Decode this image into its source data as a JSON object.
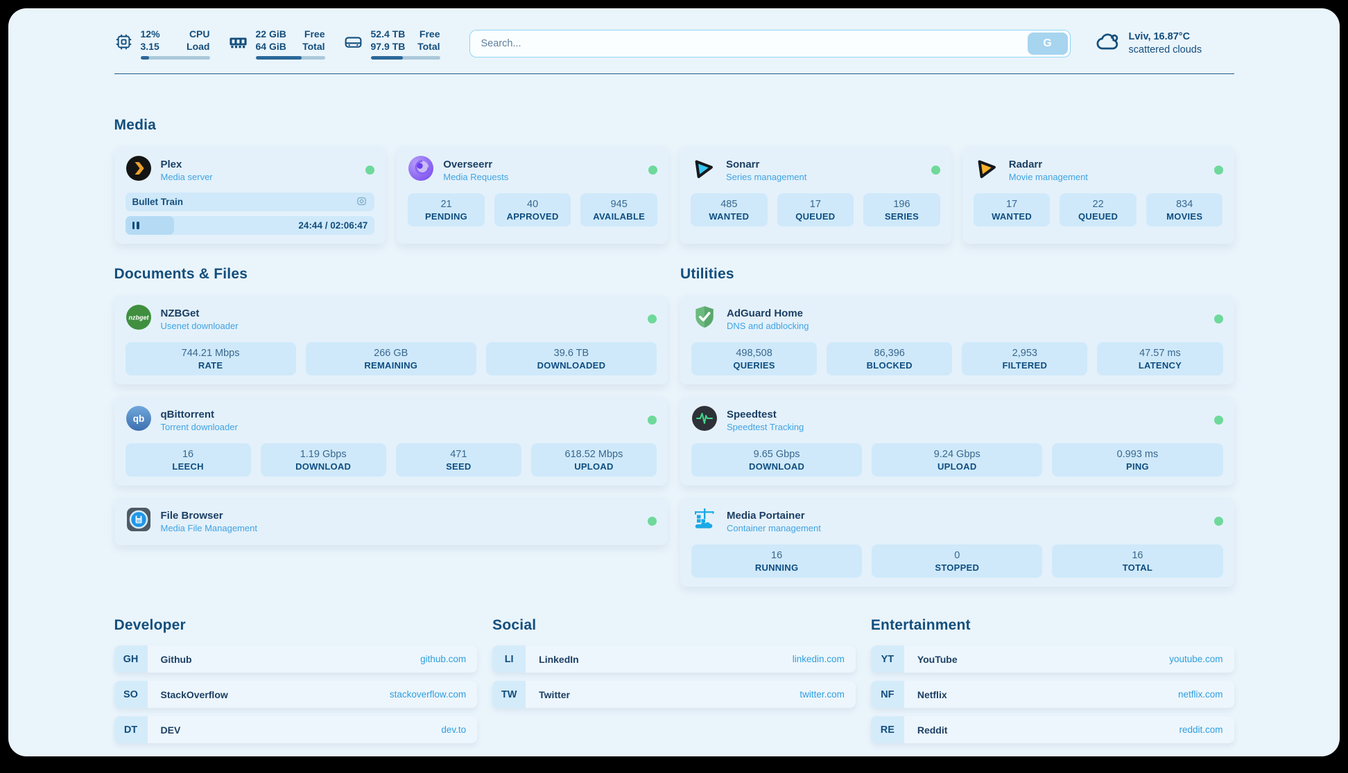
{
  "header": {
    "system_stats": [
      {
        "name": "cpu",
        "lines": [
          {
            "left": "12%",
            "right": "CPU"
          },
          {
            "left": "3.15",
            "right": "Load"
          }
        ],
        "progress_pct": 12
      },
      {
        "name": "ram",
        "lines": [
          {
            "left": "22 GiB",
            "right": "Free"
          },
          {
            "left": "64 GiB",
            "right": "Total"
          }
        ],
        "progress_pct": 66
      },
      {
        "name": "disk",
        "lines": [
          {
            "left": "52.4 TB",
            "right": "Free"
          },
          {
            "left": "97.9 TB",
            "right": "Total"
          }
        ],
        "progress_pct": 46
      }
    ],
    "search": {
      "placeholder": "Search...",
      "button_label": "G"
    },
    "weather": {
      "location_temp": "Lviv, 16.87°C",
      "condition": "scattered clouds"
    }
  },
  "sections": {
    "media": "Media",
    "documents": "Documents & Files",
    "utilities": "Utilities",
    "developer": "Developer",
    "social": "Social",
    "entertainment": "Entertainment"
  },
  "apps": {
    "plex": {
      "name": "Plex",
      "subtitle": "Media server",
      "now_playing": "Bullet Train",
      "time_display": "24:44 / 02:06:47",
      "progress_pct": 19.5
    },
    "overseerr": {
      "name": "Overseerr",
      "subtitle": "Media Requests",
      "stats": [
        {
          "value": "21",
          "label": "PENDING"
        },
        {
          "value": "40",
          "label": "APPROVED"
        },
        {
          "value": "945",
          "label": "AVAILABLE"
        }
      ]
    },
    "sonarr": {
      "name": "Sonarr",
      "subtitle": "Series management",
      "stats": [
        {
          "value": "485",
          "label": "WANTED"
        },
        {
          "value": "17",
          "label": "QUEUED"
        },
        {
          "value": "196",
          "label": "SERIES"
        }
      ]
    },
    "radarr": {
      "name": "Radarr",
      "subtitle": "Movie management",
      "stats": [
        {
          "value": "17",
          "label": "WANTED"
        },
        {
          "value": "22",
          "label": "QUEUED"
        },
        {
          "value": "834",
          "label": "MOVIES"
        }
      ]
    },
    "nzbget": {
      "name": "NZBGet",
      "subtitle": "Usenet downloader",
      "icon_text": "nzbget",
      "stats": [
        {
          "value": "744.21 Mbps",
          "label": "RATE"
        },
        {
          "value": "266 GB",
          "label": "REMAINING"
        },
        {
          "value": "39.6 TB",
          "label": "DOWNLOADED"
        }
      ]
    },
    "qbittorrent": {
      "name": "qBittorrent",
      "subtitle": "Torrent downloader",
      "icon_text": "qb",
      "stats": [
        {
          "value": "16",
          "label": "LEECH"
        },
        {
          "value": "1.19 Gbps",
          "label": "DOWNLOAD"
        },
        {
          "value": "471",
          "label": "SEED"
        },
        {
          "value": "618.52 Mbps",
          "label": "UPLOAD"
        }
      ]
    },
    "filebrowser": {
      "name": "File Browser",
      "subtitle": "Media File Management"
    },
    "adguard": {
      "name": "AdGuard Home",
      "subtitle": "DNS and adblocking",
      "stats": [
        {
          "value": "498,508",
          "label": "QUERIES"
        },
        {
          "value": "86,396",
          "label": "BLOCKED"
        },
        {
          "value": "2,953",
          "label": "FILTERED"
        },
        {
          "value": "47.57 ms",
          "label": "LATENCY"
        }
      ]
    },
    "speedtest": {
      "name": "Speedtest",
      "subtitle": "Speedtest Tracking",
      "stats": [
        {
          "value": "9.65 Gbps",
          "label": "DOWNLOAD"
        },
        {
          "value": "9.24 Gbps",
          "label": "UPLOAD"
        },
        {
          "value": "0.993 ms",
          "label": "PING"
        }
      ]
    },
    "portainer": {
      "name": "Media Portainer",
      "subtitle": "Container management",
      "stats": [
        {
          "value": "16",
          "label": "RUNNING"
        },
        {
          "value": "0",
          "label": "STOPPED"
        },
        {
          "value": "16",
          "label": "TOTAL"
        }
      ]
    }
  },
  "links": {
    "developer": [
      {
        "abbr": "GH",
        "name": "Github",
        "url": "github.com"
      },
      {
        "abbr": "SO",
        "name": "StackOverflow",
        "url": "stackoverflow.com"
      },
      {
        "abbr": "DT",
        "name": "DEV",
        "url": "dev.to"
      }
    ],
    "social": [
      {
        "abbr": "LI",
        "name": "LinkedIn",
        "url": "linkedin.com"
      },
      {
        "abbr": "TW",
        "name": "Twitter",
        "url": "twitter.com"
      }
    ],
    "entertainment": [
      {
        "abbr": "YT",
        "name": "YouTube",
        "url": "youtube.com"
      },
      {
        "abbr": "NF",
        "name": "Netflix",
        "url": "netflix.com"
      },
      {
        "abbr": "RE",
        "name": "Reddit",
        "url": "reddit.com"
      }
    ]
  },
  "icons": [
    "cpu-icon",
    "ram-icon",
    "disk-icon",
    "cloud-icon",
    "camera-icon",
    "pause-icon",
    "plex-icon",
    "overseerr-icon",
    "sonarr-icon",
    "radarr-icon",
    "nzbget-icon",
    "qbittorrent-icon",
    "filebrowser-icon",
    "adguard-icon",
    "speedtest-icon",
    "portainer-icon"
  ],
  "colors": {
    "page_bg": "#eaf4fb",
    "card_bg": "#e4f1fa",
    "pill_bg": "#cfe9fa",
    "heading": "#134e7c",
    "subtitle": "#3fa3e3",
    "link": "#2e9fe0",
    "status_online": "#6ed99a",
    "progress_fill": "#2a6899"
  }
}
